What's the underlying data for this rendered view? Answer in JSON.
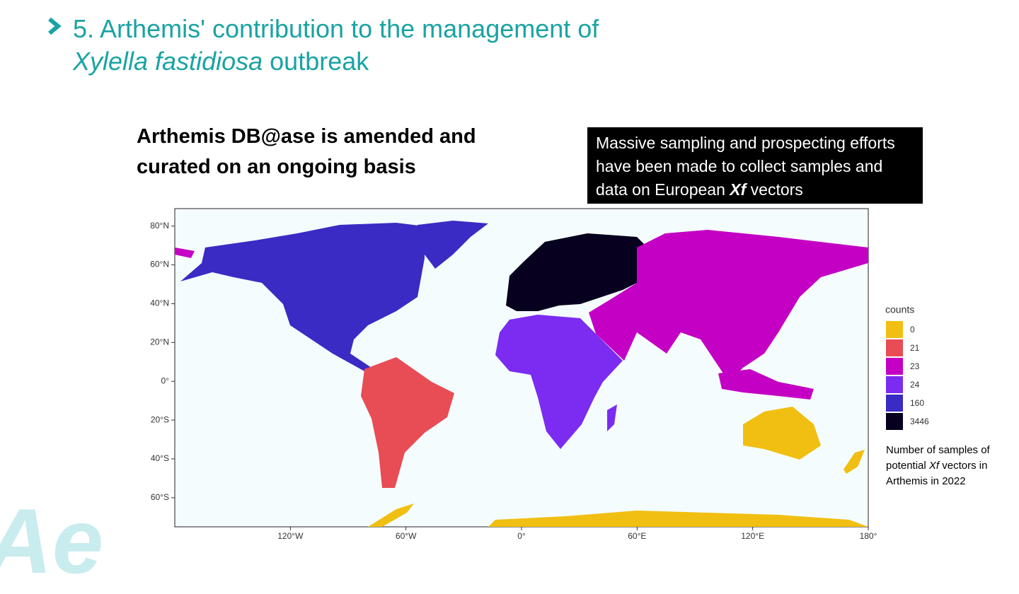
{
  "header": {
    "title_line1": "5. Arthemis' contribution to the management of",
    "title_italic": "Xylella fastidiosa",
    "title_rest": "outbreak"
  },
  "heading": "Arthemis DB@ase is amended and curated on an ongoing basis",
  "callout": {
    "text": "Massive sampling and prospecting efforts have been made to collect samples and data on European",
    "italic": "Xf",
    "rest": "vectors"
  },
  "map": {
    "xlim": [
      -180,
      180
    ],
    "xticks": [
      {
        "value": -120,
        "label": "120°W"
      },
      {
        "value": -60,
        "label": "60°W"
      },
      {
        "value": 0,
        "label": "0°"
      },
      {
        "value": 60,
        "label": "60°E"
      },
      {
        "value": 120,
        "label": "120°E"
      },
      {
        "value": 180,
        "label": "180°"
      }
    ],
    "ylim": [
      -75,
      89
    ],
    "yticks": [
      {
        "value": 80,
        "label": "80°N"
      },
      {
        "value": 60,
        "label": "60°N"
      },
      {
        "value": 40,
        "label": "40°N"
      },
      {
        "value": 20,
        "label": "20°N"
      },
      {
        "value": 0,
        "label": "0°"
      },
      {
        "value": -20,
        "label": "20°S"
      },
      {
        "value": -40,
        "label": "40°S"
      },
      {
        "value": -60,
        "label": "60°S"
      }
    ],
    "legend": {
      "title": "counts",
      "items": [
        {
          "count": 0,
          "color": "#f0bf12"
        },
        {
          "count": 21,
          "color": "#e84c55"
        },
        {
          "count": 23,
          "color": "#c400c4"
        },
        {
          "count": 24,
          "color": "#7b2cf0"
        },
        {
          "count": 160,
          "color": "#3a2bc4"
        },
        {
          "count": 3446,
          "color": "#07001e"
        }
      ]
    }
  },
  "caption": {
    "text": "Number of samples of potential",
    "italic": "Xf",
    "rest": "vectors in Arthemis in 2022"
  },
  "logo": "Ae"
}
